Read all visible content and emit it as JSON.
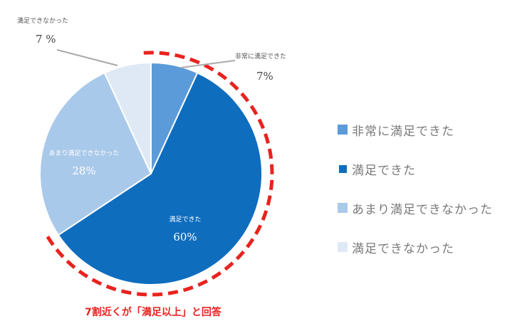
{
  "chart_data": {
    "type": "pie",
    "categories": [
      "非常に満足できた",
      "満足できた",
      "あまり満足できなかった",
      "満足できなかった"
    ],
    "values": [
      7,
      60,
      28,
      7
    ],
    "slice_labels": [
      {
        "name": "非常に満足できた",
        "percent": "7%"
      },
      {
        "name": "満足できた",
        "percent": "60%"
      },
      {
        "name": "あまり満足できなかった",
        "percent": "28%"
      },
      {
        "name": "満足できなかった",
        "percent": "7 %"
      }
    ],
    "colors": [
      "#5b9bd9",
      "#0f6dbe",
      "#a9c9ea",
      "#dfe9f6"
    ],
    "legend": {
      "placement": "right",
      "items": [
        "非常に満足できた",
        "満足できた",
        "あまり満足できなかった",
        "満足できなかった"
      ]
    },
    "annotation": "7割近くが「満足以上」と回答",
    "highlight_color": "#e8231f"
  }
}
